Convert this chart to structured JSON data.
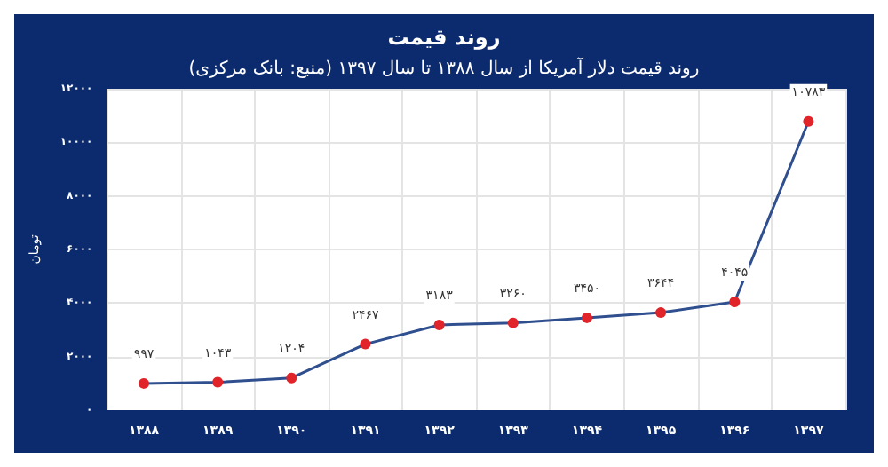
{
  "chart_data": {
    "type": "line",
    "title": "روند قیمت",
    "subtitle": "روند قیمت دلار آمریکا از سال ۱۳۸۸ تا سال ۱۳۹۷ (منبع: بانک مرکزی)",
    "ylabel": "تومان",
    "categories": [
      "۱۳۸۸",
      "۱۳۸۹",
      "۱۳۹۰",
      "۱۳۹۱",
      "۱۳۹۲",
      "۱۳۹۳",
      "۱۳۹۴",
      "۱۳۹۵",
      "۱۳۹۶",
      "۱۳۹۷"
    ],
    "series": [
      {
        "color": "#2f4f8f",
        "values": [
          997,
          1043,
          1204,
          2467,
          3183,
          3260,
          3450,
          3644,
          4045,
          10783
        ],
        "value_labels": [
          "۹۹۷",
          "۱۰۴۳",
          "۱۲۰۴",
          "۲۴۶۷",
          "۳۱۸۳",
          "۳۲۶۰",
          "۳۴۵۰",
          "۳۶۴۴",
          "۴۰۴۵",
          "۱۰۷۸۳"
        ]
      }
    ],
    "ylim": [
      0,
      12000
    ],
    "yticks": [
      {
        "value": 0,
        "label": "۰"
      },
      {
        "value": 2000,
        "label": "۲۰۰۰"
      },
      {
        "value": 4000,
        "label": "۴۰۰۰"
      },
      {
        "value": 6000,
        "label": "۶۰۰۰"
      },
      {
        "value": 8000,
        "label": "۸۰۰۰"
      },
      {
        "value": 10000,
        "label": "۱۰۰۰۰"
      },
      {
        "value": 12000,
        "label": "۱۲۰۰۰"
      }
    ],
    "grid": true,
    "marker": "circle"
  }
}
